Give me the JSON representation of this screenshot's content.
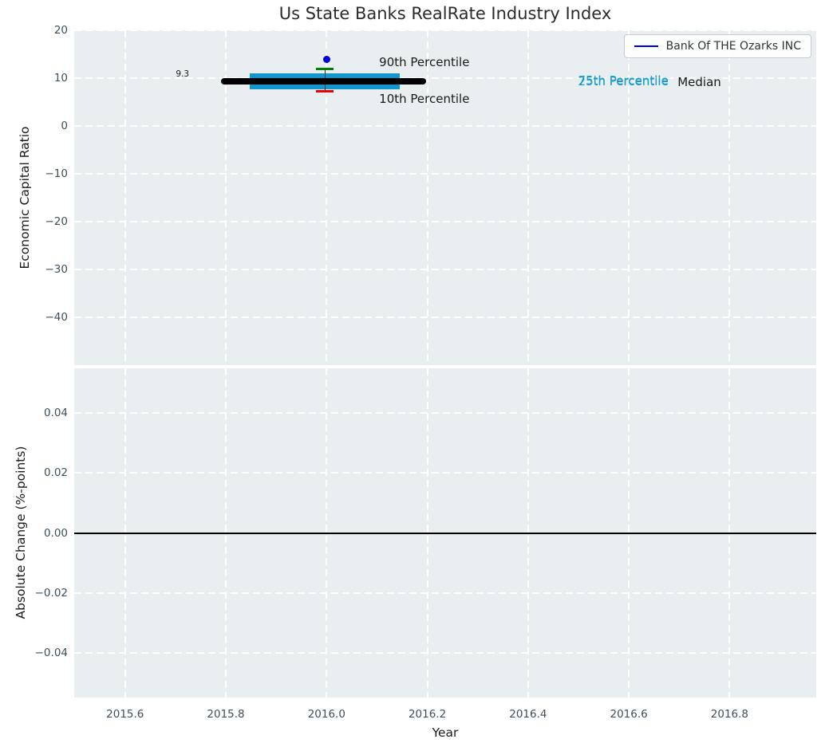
{
  "figure": {
    "title": "Us State Banks RealRate Industry Index",
    "background": "#ffffff",
    "axes_background": "#e9eef1",
    "grid_color": "#ffffff",
    "tick_label_color": "#3d4f5d",
    "axis_label_color": "#1a1a1a",
    "title_color": "#2b2b2b"
  },
  "legend": {
    "label": "Bank Of THE Ozarks INC",
    "line_color": "#0000dd",
    "border_color": "#c9c9cf",
    "text_color": "#333333"
  },
  "chart_data": [
    {
      "type": "scatter",
      "title": "Us State Banks RealRate Industry Index",
      "ylabel": "Economic Capital Ratio",
      "xlabel": "",
      "xlim": [
        2015.499,
        2016.972
      ],
      "ylim": [
        -50,
        20
      ],
      "grid": true,
      "legend_position": "upper right",
      "xticks": {
        "values": [
          2015.6,
          2015.8,
          2016.0,
          2016.2,
          2016.4,
          2016.6,
          2016.8
        ],
        "labels": []
      },
      "yticks": [
        {
          "v": 20,
          "label": "20"
        },
        {
          "v": 10,
          "label": "10"
        },
        {
          "v": 0,
          "label": "0"
        },
        {
          "v": -10,
          "label": "−10"
        },
        {
          "v": -20,
          "label": "−20"
        },
        {
          "v": -30,
          "label": "−30"
        },
        {
          "v": -40,
          "label": "−40"
        }
      ],
      "series": [
        {
          "name": "Bank Of THE Ozarks INC",
          "marker": "circle",
          "color": "#0000dd",
          "points": [
            {
              "x": 2016.0,
              "y": 14.0
            }
          ]
        }
      ],
      "industry_box": {
        "x_center": 2015.997,
        "median": 9.3,
        "p90": 12.0,
        "p75": 11.0,
        "p25": 7.7,
        "p10": 7.3,
        "median_span": [
          2015.791,
          2016.197
        ],
        "box_span": [
          2015.848,
          2016.145
        ],
        "cap_span": [
          2015.979,
          2016.014
        ],
        "box_color": "#1396cb",
        "median_color": "#000000",
        "p90_color": "#008000",
        "p10_color": "#ee0000",
        "whisker_color": "#2a2a2a"
      },
      "annotations": [
        {
          "name": "median-value-annotation",
          "text": "9.3",
          "x": 2015.714,
          "y": 10.8,
          "color": "#1a1a1a",
          "size": 10.5
        },
        {
          "name": "p90-label",
          "text": "90th Percentile",
          "x": 2016.194,
          "y": 13.3,
          "color": "#1a1a1a",
          "size": 15
        },
        {
          "name": "p10-label",
          "text": "10th Percentile",
          "x": 2016.194,
          "y": 5.7,
          "color": "#1a1a1a",
          "size": 15
        },
        {
          "name": "p75-label",
          "text": "75th Percentile",
          "x": 2016.589,
          "y": 9.55,
          "color": "#1b9ece",
          "size": 15
        },
        {
          "name": "p25-label",
          "text": "25th Percentile",
          "x": 2016.589,
          "y": 9.4,
          "color": "#1b9ece",
          "size": 15
        },
        {
          "name": "median-label",
          "text": "Median",
          "x": 2016.74,
          "y": 9.25,
          "color": "#1a1a1a",
          "size": 15
        }
      ]
    },
    {
      "type": "line",
      "title": "",
      "ylabel": "Absolute Change (%-points)",
      "xlabel": "Year",
      "xlim": [
        2015.499,
        2016.972
      ],
      "ylim": [
        -0.055,
        0.055
      ],
      "grid": true,
      "zero_line": {
        "y": 0.0,
        "color": "#000000"
      },
      "xticks": {
        "values": [
          2015.6,
          2015.8,
          2016.0,
          2016.2,
          2016.4,
          2016.6,
          2016.8
        ],
        "labels": [
          "2015.6",
          "2015.8",
          "2016.0",
          "2016.2",
          "2016.4",
          "2016.6",
          "2016.8"
        ]
      },
      "yticks": [
        {
          "v": 0.04,
          "label": "0.04"
        },
        {
          "v": 0.02,
          "label": "0.02"
        },
        {
          "v": 0.0,
          "label": "0.00"
        },
        {
          "v": -0.02,
          "label": "−0.02"
        },
        {
          "v": -0.04,
          "label": "−0.04"
        }
      ],
      "series": []
    }
  ]
}
